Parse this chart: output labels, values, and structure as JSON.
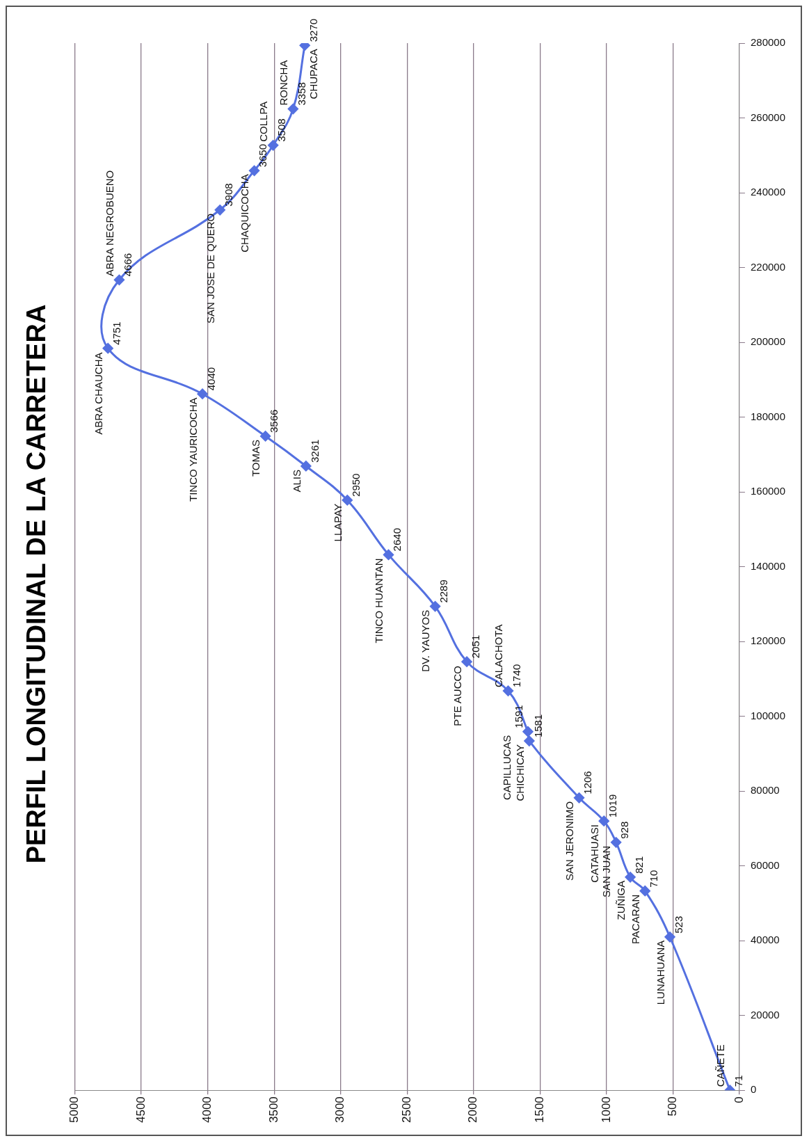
{
  "chart_data": {
    "type": "line",
    "title": "PERFIL LONGITUDINAL DE LA CARRETERA",
    "orientation": "horizontal",
    "x": [
      0,
      41000,
      53300,
      57000,
      66300,
      72000,
      78200,
      93400,
      95900,
      106800,
      114600,
      129400,
      143200,
      157800,
      166900,
      174900,
      186200,
      198400,
      216700,
      235400,
      245900,
      252700,
      262400,
      279400
    ],
    "series": [
      {
        "color": "#5470e0",
        "values": [
          71,
          523,
          710,
          821,
          928,
          1019,
          1206,
          1581,
          1591,
          1740,
          2051,
          2289,
          2640,
          2950,
          3261,
          3566,
          4040,
          4751,
          4666,
          3908,
          3650,
          3508,
          3358,
          3270
        ]
      }
    ],
    "xlim": [
      5000,
      0
    ],
    "xticks": [
      5000,
      4500,
      4000,
      3500,
      3000,
      2500,
      2000,
      1500,
      1000,
      500,
      0
    ],
    "ylim": [
      0,
      280000
    ],
    "yticks": [
      0,
      20000,
      40000,
      60000,
      80000,
      100000,
      120000,
      140000,
      160000,
      180000,
      200000,
      220000,
      240000,
      260000,
      280000
    ],
    "grid": "x",
    "marker": "diamond",
    "data_labels": true,
    "legend": false,
    "annotations": [
      {
        "text": "CAÑETE",
        "y": 0,
        "x": 71
      },
      {
        "text": "LUNAHUANA",
        "y": 41000,
        "x": 523
      },
      {
        "text": "PACARAN",
        "y": 53300,
        "x": 710
      },
      {
        "text": "ZUÑIGA",
        "y": 57000,
        "x": 821
      },
      {
        "text": "SAN JUAN",
        "y": 66300,
        "x": 928
      },
      {
        "text": "CATAHUASI",
        "y": 72000,
        "x": 1019
      },
      {
        "text": "SAN JERONIMO",
        "y": 78200,
        "x": 1206
      },
      {
        "text": "CHICHICAY",
        "y": 93400,
        "x": 1581
      },
      {
        "text": "CAPILLUCAS",
        "y": 95900,
        "x": 1591
      },
      {
        "text": "CALACHOTA",
        "y": 106800,
        "x": 1740
      },
      {
        "text": "PTE AUCCO",
        "y": 114600,
        "x": 2051
      },
      {
        "text": "DV. YAUYOS",
        "y": 129400,
        "x": 2289
      },
      {
        "text": "TINCO HUANTAN",
        "y": 143200,
        "x": 2640
      },
      {
        "text": "LLAPAY",
        "y": 157800,
        "x": 2950
      },
      {
        "text": "ALIS",
        "y": 166900,
        "x": 3261
      },
      {
        "text": "TOMAS",
        "y": 174900,
        "x": 3566
      },
      {
        "text": "TINCO YAURICOCHA",
        "y": 186200,
        "x": 4040
      },
      {
        "text": "ABRA CHAUCHA",
        "y": 198400,
        "x": 4751
      },
      {
        "text": "ABRA NEGROBUENO",
        "y": 216700,
        "x": 4666
      },
      {
        "text": "SAN JOSE DE QUERO",
        "y": 235400,
        "x": 3908
      },
      {
        "text": "CHAQUICOCHA",
        "y": 245900,
        "x": 3650
      },
      {
        "text": "COLLPA",
        "y": 252700,
        "x": 3508
      },
      {
        "text": "RONCHA",
        "y": 262400,
        "x": 3358
      },
      {
        "text": "CHUPACA",
        "y": 279400,
        "x": 3270
      }
    ]
  }
}
